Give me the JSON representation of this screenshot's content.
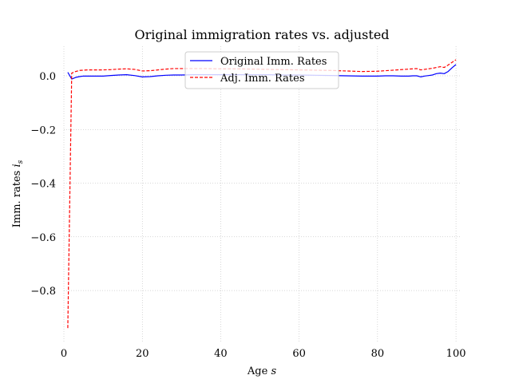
{
  "chart_data": {
    "type": "line",
    "title": "Original immigration rates vs. adjusted",
    "xlabel_text": "Age",
    "xlabel_var": "s",
    "ylabel_text": "Imm. rates",
    "ylabel_var": "i",
    "ylabel_sub": "s",
    "xlim": [
      0,
      101
    ],
    "ylim": [
      -0.99,
      0.11
    ],
    "xticks": [
      0,
      20,
      40,
      60,
      80,
      100
    ],
    "xtick_labels": [
      "0",
      "20",
      "40",
      "60",
      "80",
      "100"
    ],
    "yticks": [
      0.0,
      -0.2,
      -0.4,
      -0.6,
      -0.8
    ],
    "ytick_labels": [
      "0.0",
      "−0.2",
      "−0.4",
      "−0.6",
      "−0.8"
    ],
    "grid": true,
    "legend_position": "top-center",
    "series": [
      {
        "name": "Original Imm. Rates",
        "color": "#0000ff",
        "style": "solid",
        "x": [
          1,
          2,
          3,
          4,
          5,
          6,
          8,
          10,
          12,
          14,
          16,
          18,
          20,
          22,
          24,
          26,
          28,
          30,
          33,
          36,
          40,
          44,
          48,
          52,
          56,
          60,
          64,
          68,
          72,
          76,
          80,
          82,
          84,
          86,
          88,
          89,
          90,
          91,
          92,
          93,
          94,
          95,
          96,
          97,
          98,
          99,
          100
        ],
        "y": [
          0.013,
          -0.012,
          -0.006,
          -0.003,
          -0.001,
          -0.001,
          -0.001,
          -0.001,
          0.001,
          0.003,
          0.004,
          0.001,
          -0.004,
          -0.003,
          0.0,
          0.002,
          0.003,
          0.003,
          0.004,
          0.004,
          0.004,
          0.004,
          0.004,
          0.004,
          0.003,
          0.003,
          0.002,
          0.001,
          0.0,
          -0.001,
          -0.001,
          0.0,
          0.0,
          -0.001,
          -0.001,
          0.0,
          0.0,
          -0.004,
          -0.001,
          0.001,
          0.003,
          0.008,
          0.01,
          0.008,
          0.016,
          0.03,
          0.042
        ]
      },
      {
        "name": "Adj. Imm. Rates",
        "color": "#ff0000",
        "style": "dashed",
        "x": [
          1,
          2,
          3,
          4,
          5,
          6,
          8,
          10,
          12,
          14,
          16,
          18,
          20,
          22,
          24,
          26,
          28,
          30,
          33,
          36,
          40,
          44,
          48,
          52,
          56,
          60,
          64,
          68,
          72,
          76,
          80,
          82,
          84,
          86,
          88,
          89,
          90,
          91,
          92,
          93,
          94,
          95,
          96,
          97,
          98,
          99,
          100
        ],
        "y": [
          -0.94,
          0.01,
          0.016,
          0.02,
          0.021,
          0.022,
          0.022,
          0.022,
          0.023,
          0.025,
          0.026,
          0.024,
          0.018,
          0.019,
          0.022,
          0.025,
          0.027,
          0.027,
          0.027,
          0.027,
          0.026,
          0.026,
          0.025,
          0.024,
          0.023,
          0.022,
          0.021,
          0.02,
          0.018,
          0.016,
          0.017,
          0.019,
          0.021,
          0.023,
          0.025,
          0.026,
          0.027,
          0.022,
          0.024,
          0.026,
          0.028,
          0.031,
          0.034,
          0.031,
          0.04,
          0.05,
          0.06
        ]
      }
    ]
  }
}
